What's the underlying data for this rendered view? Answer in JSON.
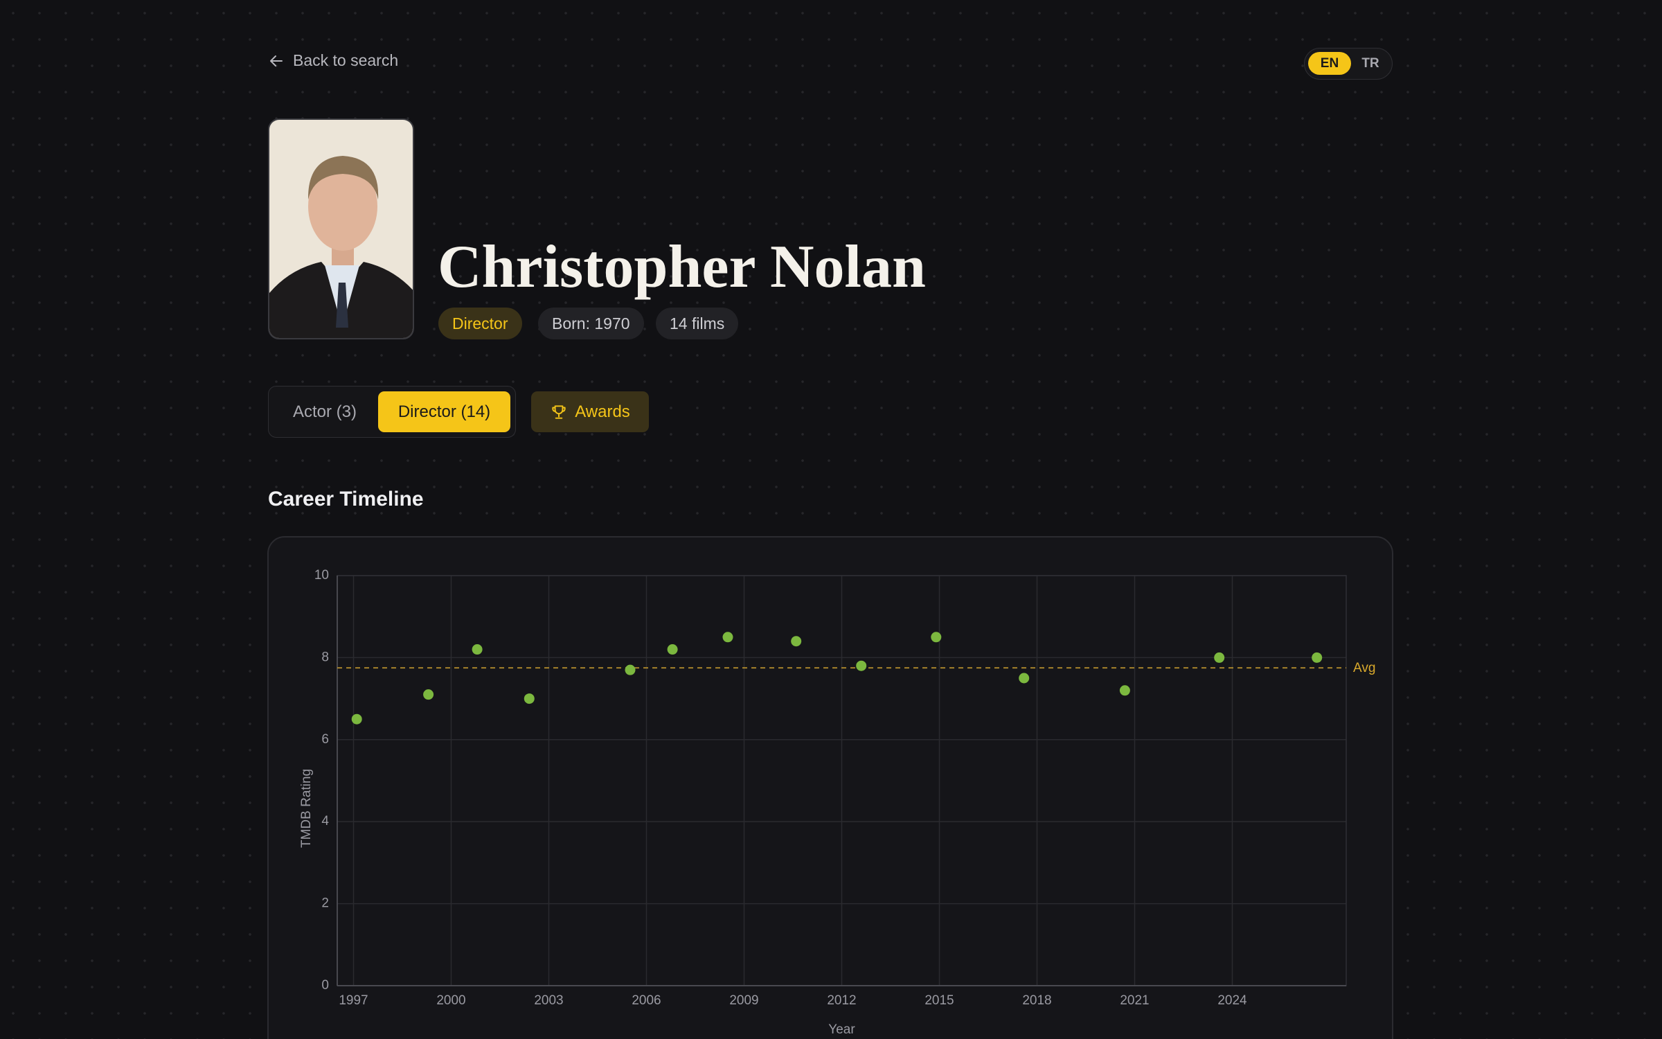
{
  "nav": {
    "back": "Back to search",
    "languages": [
      "EN",
      "TR"
    ]
  },
  "header": {
    "name": "Christopher Nolan",
    "badges": [
      "Director",
      "Born: 1970",
      "14 films"
    ]
  },
  "tabs": [
    "Actor (3)",
    "Director (14)",
    "Awards"
  ],
  "section_title": "Career Timeline",
  "chart_data": {
    "type": "scatter",
    "x_label": "Year",
    "y_label": "TMDB Rating",
    "x": [
      1997.1,
      1999.3,
      2000.8,
      2002.4,
      2005.5,
      2006.8,
      2008.5,
      2010.6,
      2012.6,
      2014.9,
      2017.6,
      2020.7,
      2023.6,
      2026.6
    ],
    "values": [
      6.5,
      7.1,
      8.2,
      7.0,
      7.7,
      8.2,
      8.5,
      8.4,
      7.8,
      8.5,
      7.5,
      7.2,
      8.0,
      8.0
    ],
    "color": "#7cb83f",
    "xlim": [
      1996.5,
      2027.5
    ],
    "xticks": [
      1997,
      2000,
      2003,
      2006,
      2009,
      2012,
      2015,
      2018,
      2021,
      2024
    ],
    "ylim": [
      0,
      10
    ],
    "yticks": [
      0,
      2,
      4,
      6,
      8,
      10
    ],
    "grid": true,
    "average": {
      "value": 7.75,
      "label": "Avg",
      "color": "#b08a2c"
    }
  }
}
